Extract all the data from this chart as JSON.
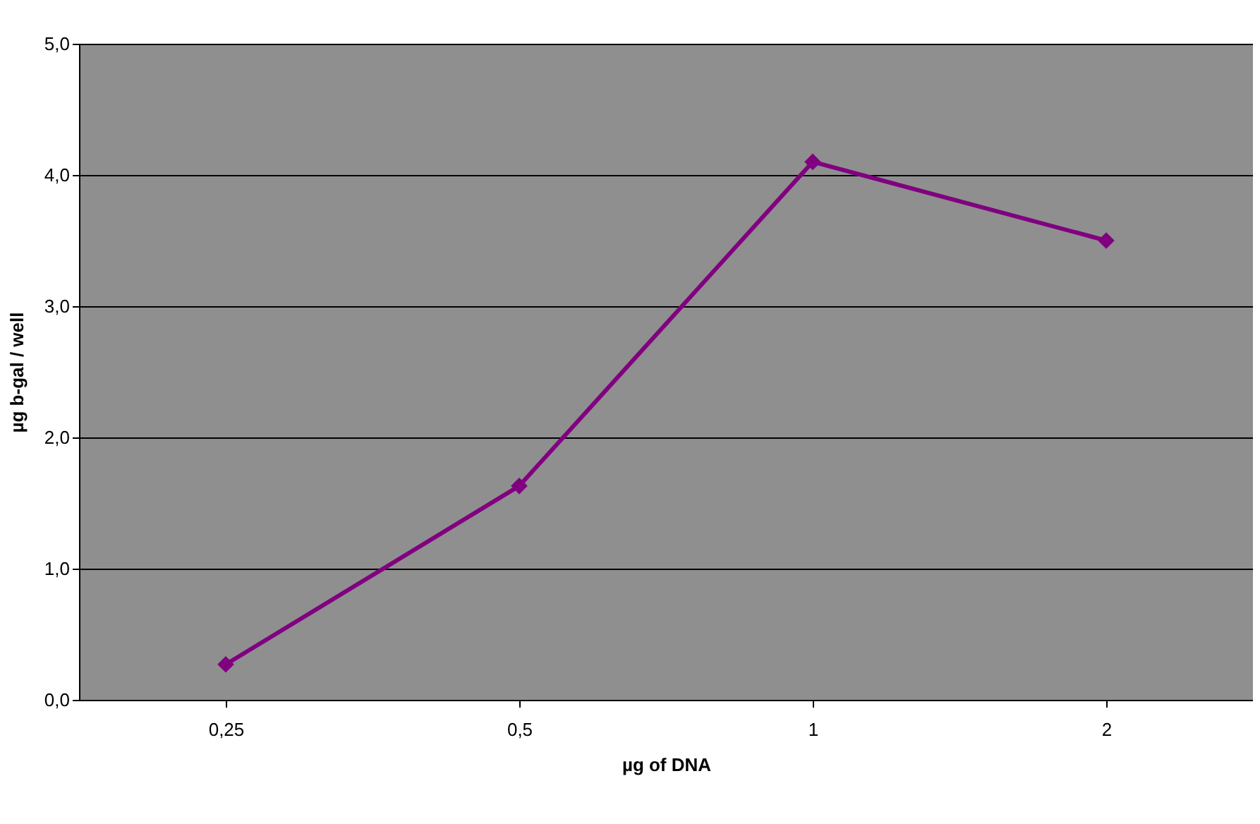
{
  "chart_data": {
    "type": "line",
    "xlabel": "µg of DNA",
    "ylabel": "µg b-gal / well",
    "categories": [
      "0,25",
      "0,5",
      "1",
      "2"
    ],
    "series": [
      {
        "color": "#800080",
        "values": [
          0.27,
          1.63,
          4.1,
          3.5
        ]
      }
    ],
    "ylim": [
      0,
      5
    ],
    "yticks": [
      {
        "value": 0,
        "label": "0,0"
      },
      {
        "value": 1,
        "label": "1,0"
      },
      {
        "value": 2,
        "label": "2,0"
      },
      {
        "value": 3,
        "label": "3,0"
      },
      {
        "value": 4,
        "label": "4,0"
      },
      {
        "value": 5,
        "label": "5,0"
      }
    ],
    "grid": "y",
    "marker": "diamond",
    "line_style": "solid",
    "legend": false
  }
}
